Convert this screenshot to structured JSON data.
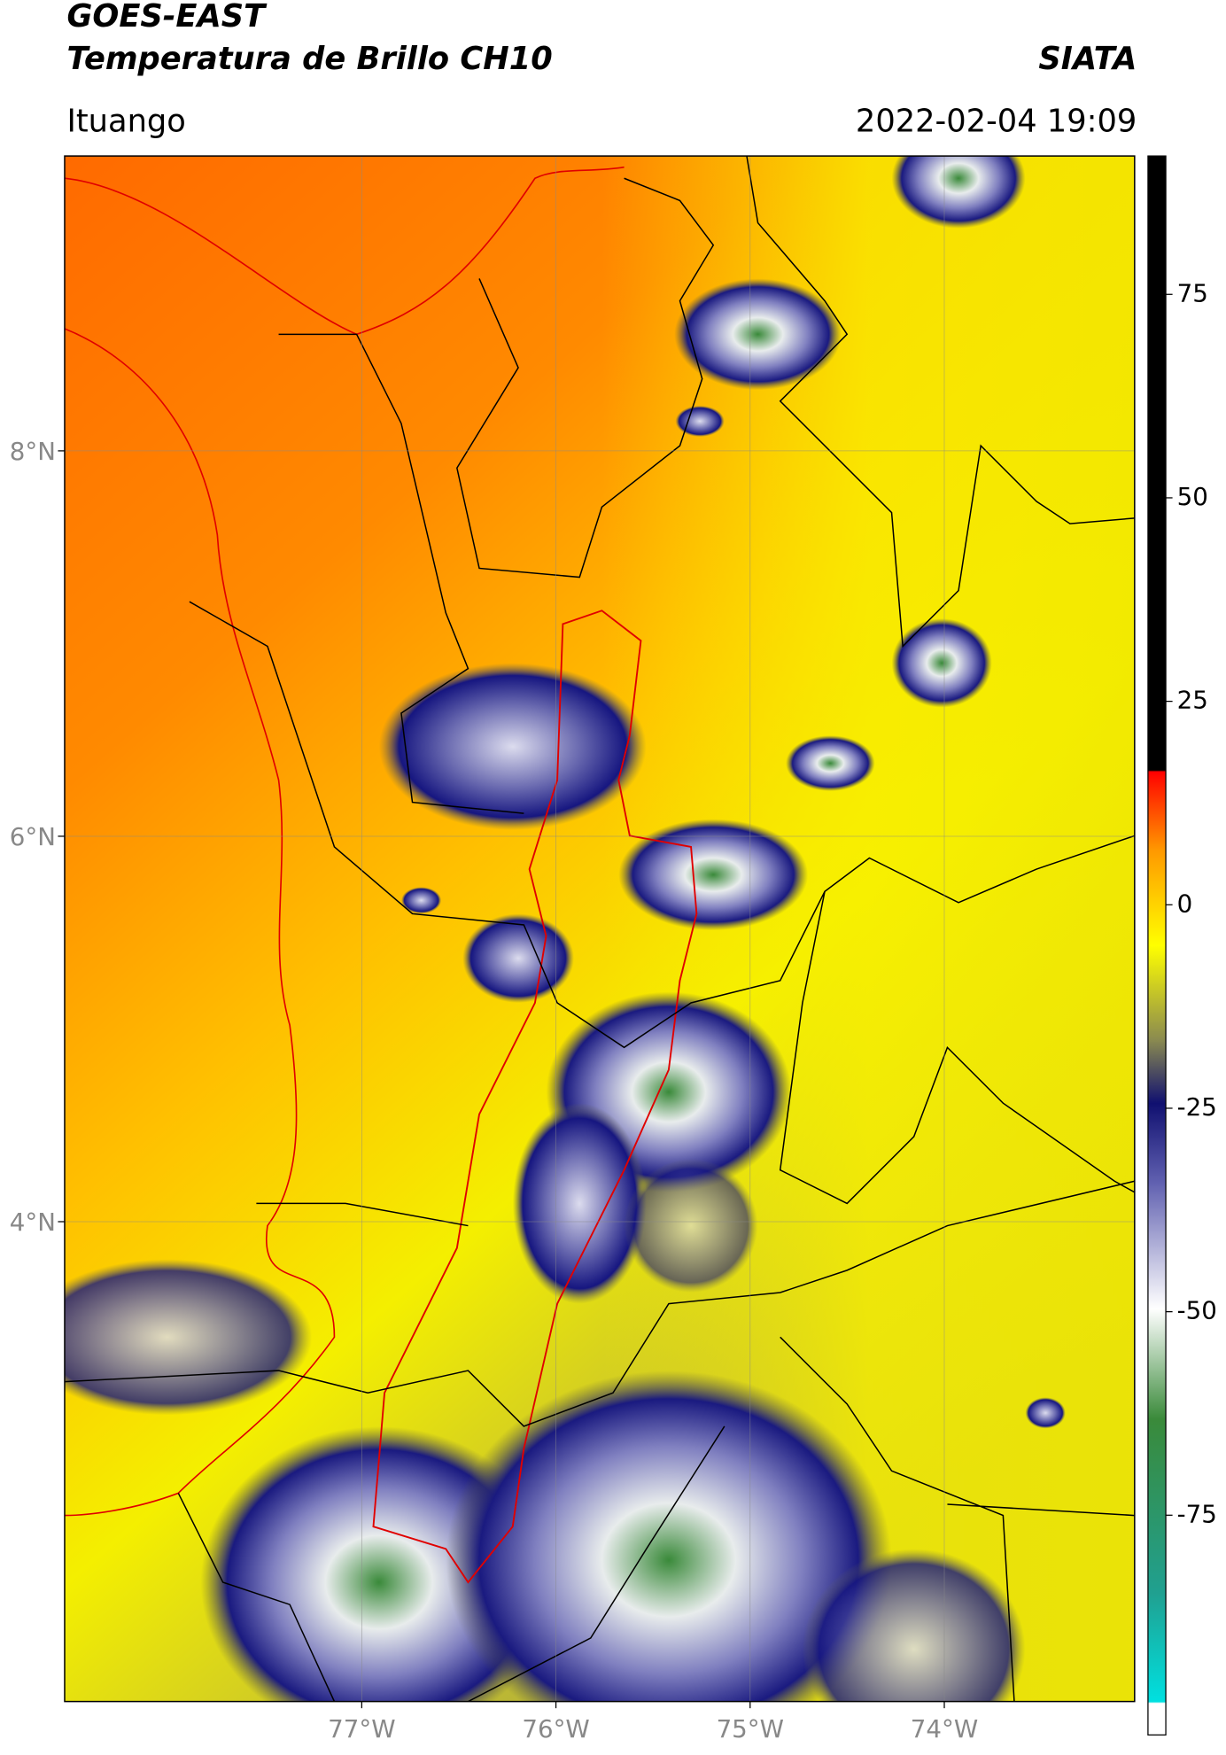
{
  "header": {
    "title": "GOES-EAST",
    "subtitle": "Temperatura de Brillo CH10",
    "source": "SIATA",
    "region": "Ituango",
    "datetime": "2022-02-04 19:09"
  },
  "map": {
    "xlim": [
      -78.53,
      -73.02
    ],
    "ylim": [
      1.51,
      9.53
    ],
    "xticks": [
      {
        "value": -77,
        "label": "77°W"
      },
      {
        "value": -76,
        "label": "76°W"
      },
      {
        "value": -75,
        "label": "75°W"
      },
      {
        "value": -74,
        "label": "74°W"
      }
    ],
    "yticks": [
      {
        "value": 8,
        "label": "8°N"
      },
      {
        "value": 6,
        "label": "6°N"
      },
      {
        "value": 4,
        "label": "4°N"
      }
    ],
    "grid": true
  },
  "colorbar": {
    "lim": [
      -102,
      92
    ],
    "ticks": [
      75,
      50,
      25,
      0,
      -25,
      -50,
      -75
    ]
  }
}
